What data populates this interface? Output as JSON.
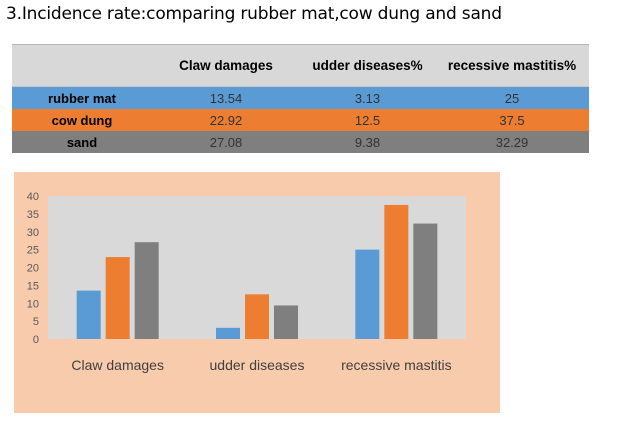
{
  "page": {
    "title": "3.Incidence rate:comparing rubber mat,cow dung and sand"
  },
  "table": {
    "headers": [
      "",
      "Claw damages",
      "udder diseases%",
      "recessive mastitis%"
    ],
    "rows": [
      {
        "label": "rubber mat",
        "values": [
          "13.54",
          "3.13",
          "25"
        ],
        "color": "#5b9bd5"
      },
      {
        "label": "cow dung",
        "values": [
          "22.92",
          "12.5",
          "37.5"
        ],
        "color": "#ed7d31"
      },
      {
        "label": "sand",
        "values": [
          "27.08",
          "9.38",
          "32.29"
        ],
        "color": "#7f7f7f"
      }
    ]
  },
  "colors": {
    "chart_background": "#f8cbad",
    "plot_background": "#d9d9d9",
    "header_background": "#d8d8d8"
  },
  "chart_data": {
    "type": "bar",
    "categories": [
      "Claw damages",
      "udder diseases",
      "recessive mastitis"
    ],
    "series": [
      {
        "values": [
          13.54,
          3.13,
          25
        ],
        "color": "#5b9bd5"
      },
      {
        "values": [
          22.92,
          12.5,
          37.5
        ],
        "color": "#ed7d31"
      },
      {
        "values": [
          27.08,
          9.38,
          32.29
        ],
        "color": "#7f7f7f"
      }
    ],
    "title": "",
    "xlabel": "",
    "ylabel": "",
    "ylim": [
      0,
      40
    ],
    "yticks": [
      0,
      5,
      10,
      15,
      20,
      25,
      30,
      35,
      40
    ],
    "grid": false,
    "legend": "none"
  }
}
